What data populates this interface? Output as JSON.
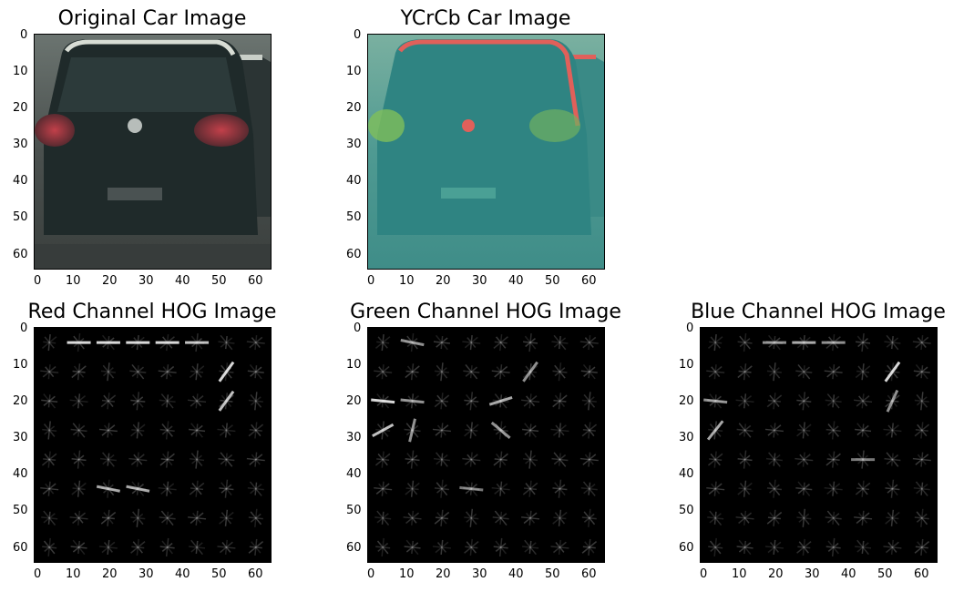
{
  "panels": [
    {
      "id": "original",
      "title": "Original Car Image",
      "kind": "photo"
    },
    {
      "id": "ycrcb",
      "title": "YCrCb Car Image",
      "kind": "photo"
    },
    {
      "id": "red",
      "title": "Red Channel HOG Image",
      "kind": "hog"
    },
    {
      "id": "green",
      "title": "Green Channel HOG Image",
      "kind": "hog"
    },
    {
      "id": "blue",
      "title": "Blue Channel HOG Image",
      "kind": "hog"
    }
  ],
  "axes": {
    "xticks": [
      "0",
      "10",
      "20",
      "30",
      "40",
      "50",
      "60"
    ],
    "yticks": [
      "0",
      "10",
      "20",
      "30",
      "40",
      "50",
      "60"
    ]
  },
  "colors": {
    "original_bg": "#3a3f3d",
    "original_car": "#1f2a2a",
    "ycrcb_bg": "#3c8f8a",
    "ycrcb_car": "#2f7d7d",
    "ycrcb_edge": "#e0605a",
    "hog_bg": "#000000",
    "hog_line": "#d8d8d8"
  }
}
